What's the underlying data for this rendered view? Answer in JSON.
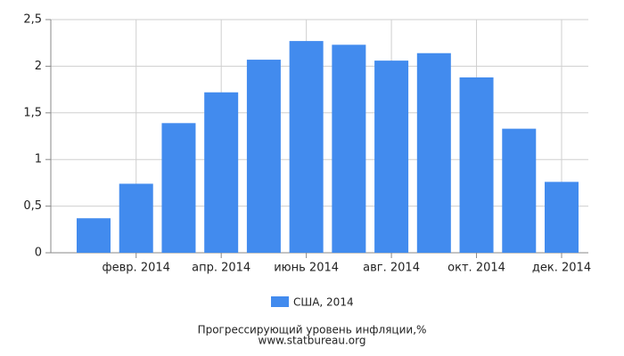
{
  "chart_data": {
    "type": "bar",
    "categories": [
      null,
      "февр. 2014",
      null,
      "апр. 2014",
      null,
      "июнь 2014",
      null,
      "авг. 2014",
      null,
      "окт. 2014",
      null,
      "дек. 2014"
    ],
    "series": [
      {
        "name": "США, 2014",
        "color": "#428bee",
        "values": [
          0.37,
          0.74,
          1.39,
          1.72,
          2.07,
          2.27,
          2.23,
          2.06,
          2.14,
          1.88,
          1.33,
          0.76
        ]
      }
    ],
    "ylim": [
      0,
      2.5
    ],
    "yticks": [
      0,
      {
        "value": 0.5,
        "label": "0,5"
      },
      1,
      {
        "value": 1.5,
        "label": "1,5"
      },
      2,
      {
        "value": 2.5,
        "label": "2,5"
      }
    ],
    "grid": true,
    "title": "Прогрессирующий уровень инфляции,%",
    "subtitle": "www.statbureau.org"
  }
}
